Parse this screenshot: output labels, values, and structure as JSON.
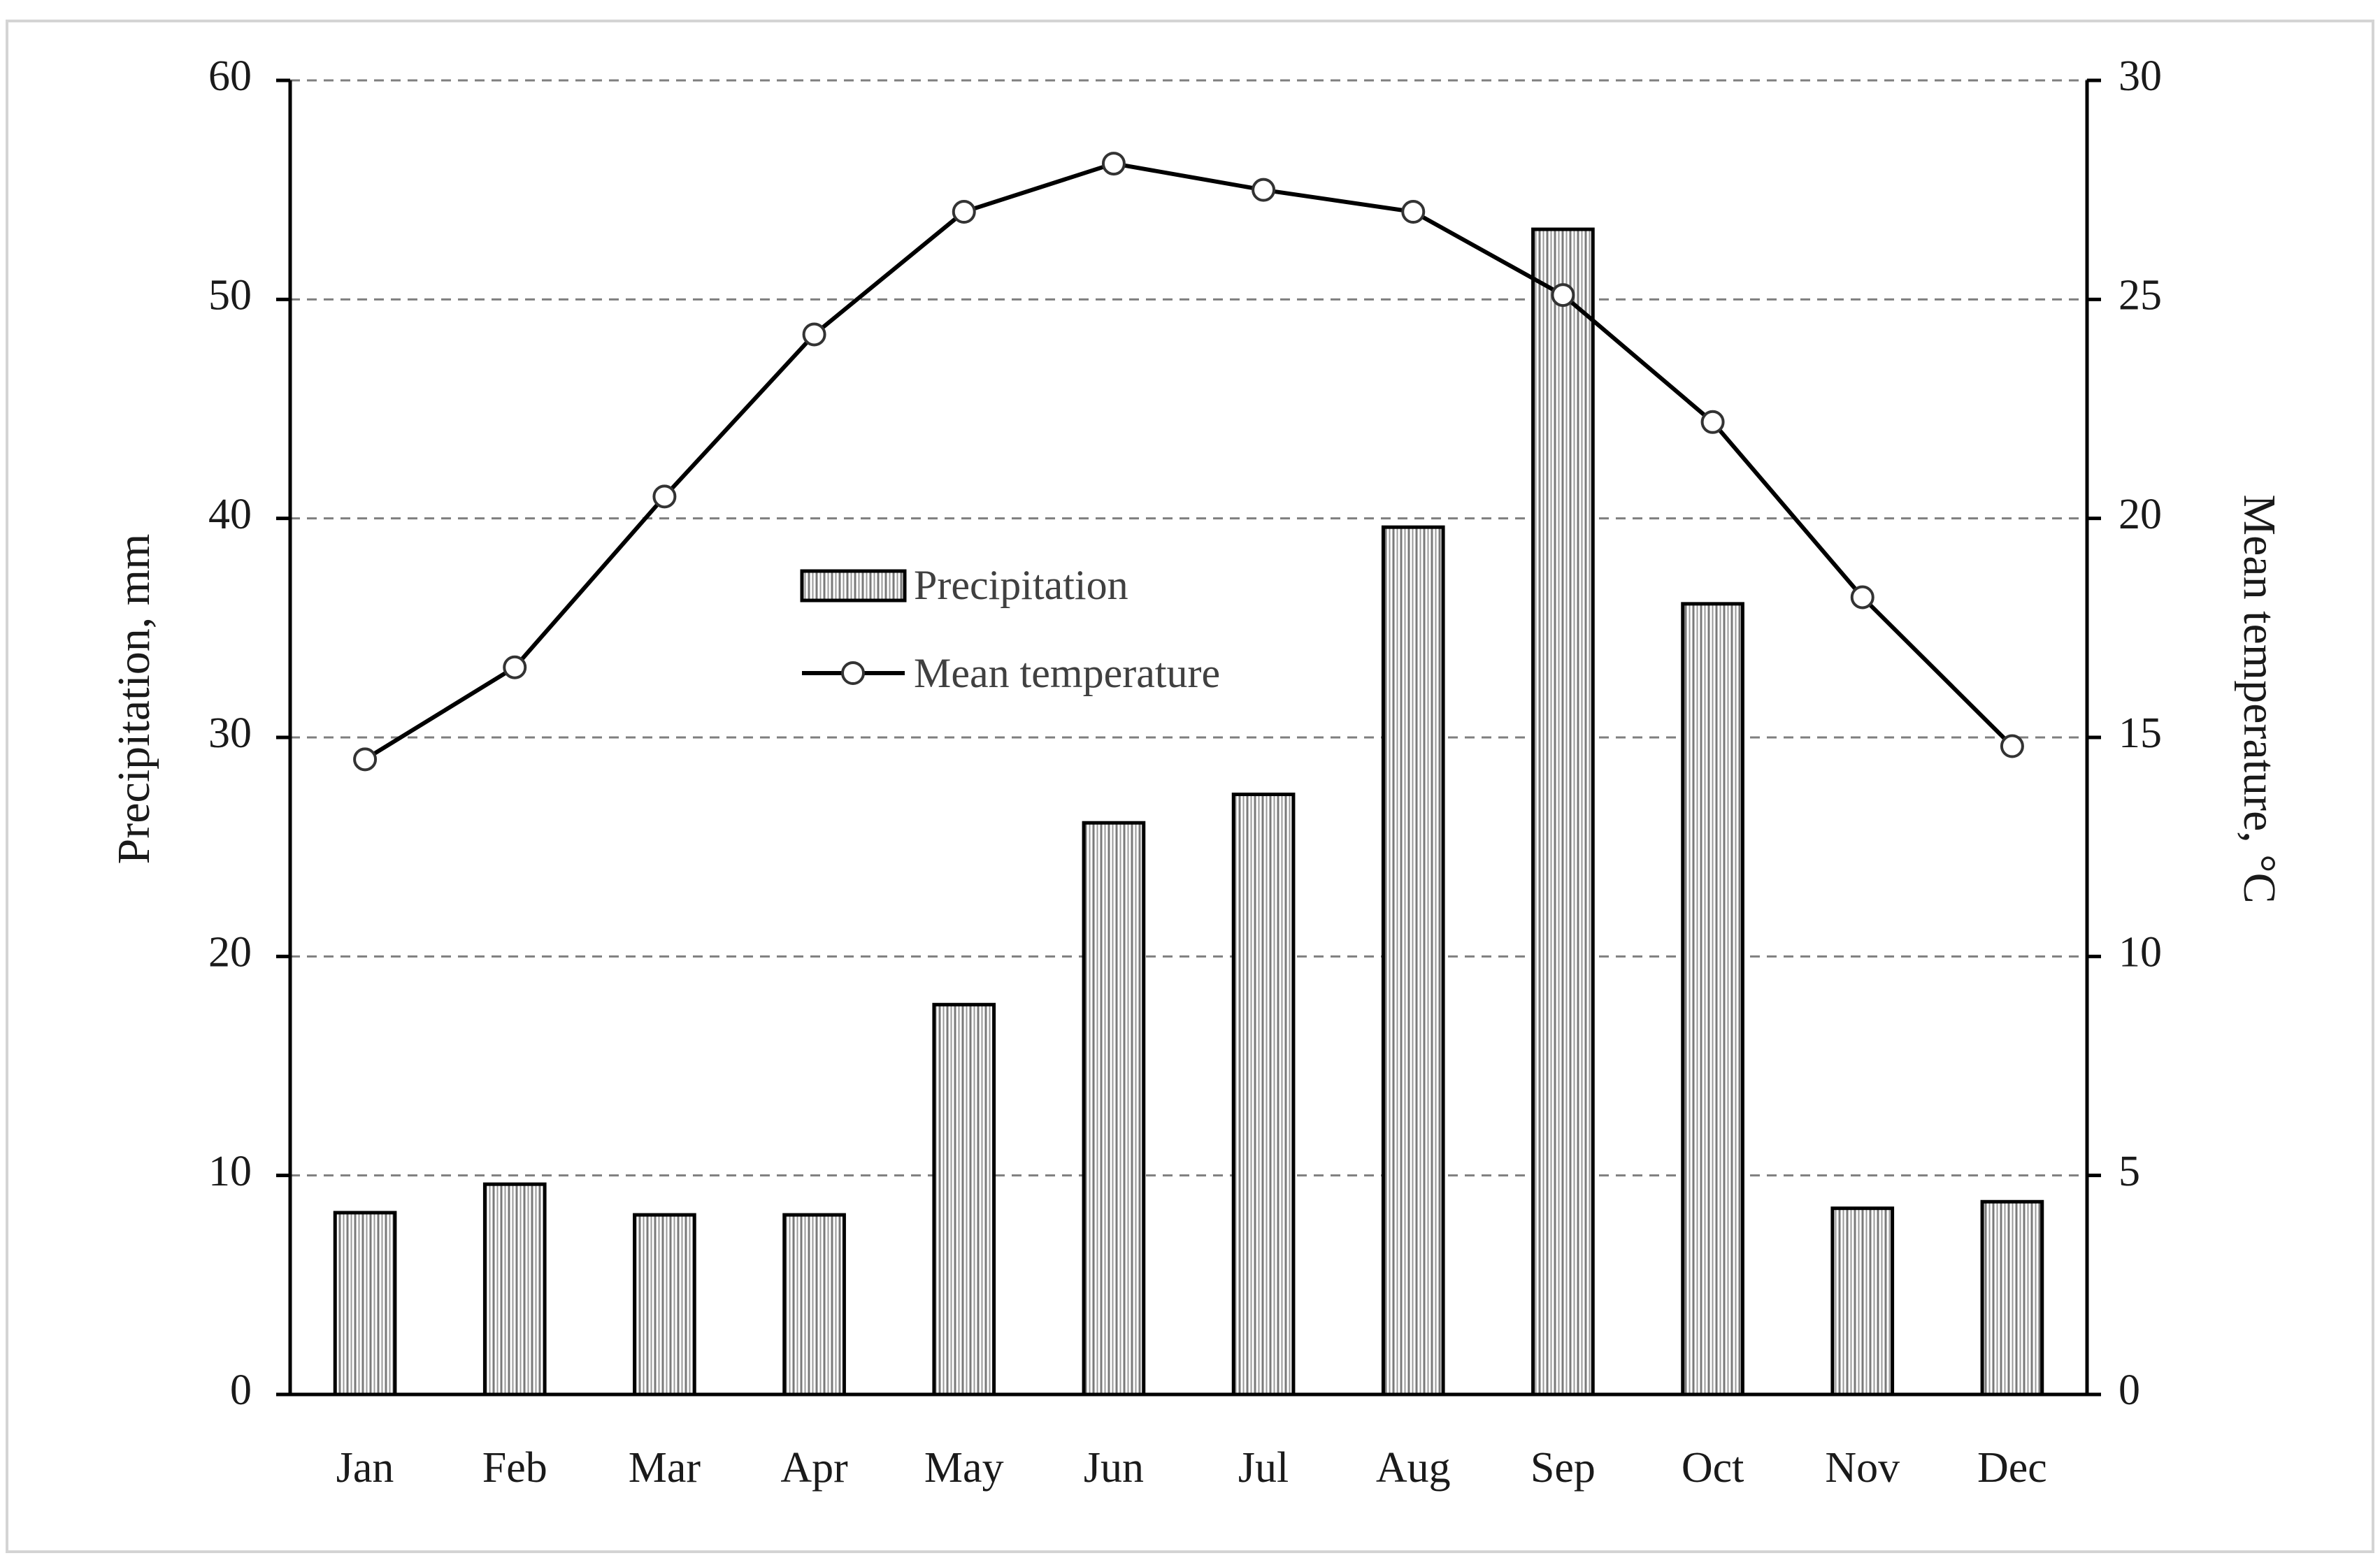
{
  "chart_data": {
    "type": "bar",
    "categories": [
      "Jan",
      "Feb",
      "Mar",
      "Apr",
      "May",
      "Jun",
      "Jul",
      "Aug",
      "Sep",
      "Oct",
      "Nov",
      "Dec"
    ],
    "series": [
      {
        "name": "Precipitation",
        "type": "bar",
        "axis": "left",
        "values": [
          8.3,
          9.6,
          8.2,
          8.2,
          17.8,
          26.1,
          27.4,
          39.6,
          53.2,
          36.1,
          8.5,
          8.8
        ]
      },
      {
        "name": "Mean temperature",
        "type": "line",
        "axis": "right",
        "values": [
          14.5,
          16.6,
          20.5,
          24.2,
          27.0,
          28.1,
          27.5,
          27.0,
          25.1,
          22.2,
          18.2,
          14.8
        ]
      }
    ],
    "ylabel": "Precipitation,  mm",
    "y2label": "Mean temperature, °C",
    "xlabel": "",
    "ylim": [
      0,
      60
    ],
    "y2lim": [
      0,
      30
    ],
    "yticks": [
      "0",
      "10",
      "20",
      "30",
      "40",
      "50",
      "60"
    ],
    "y2ticks": [
      "0",
      "5",
      "10",
      "15",
      "20",
      "25",
      "30"
    ],
    "grid": true,
    "legend_position": "center"
  },
  "colors": {
    "bar_fill": "#ffffff",
    "bar_hatch": "#7a7a7a",
    "line": "#000000",
    "grid": "#7f7f7f"
  }
}
